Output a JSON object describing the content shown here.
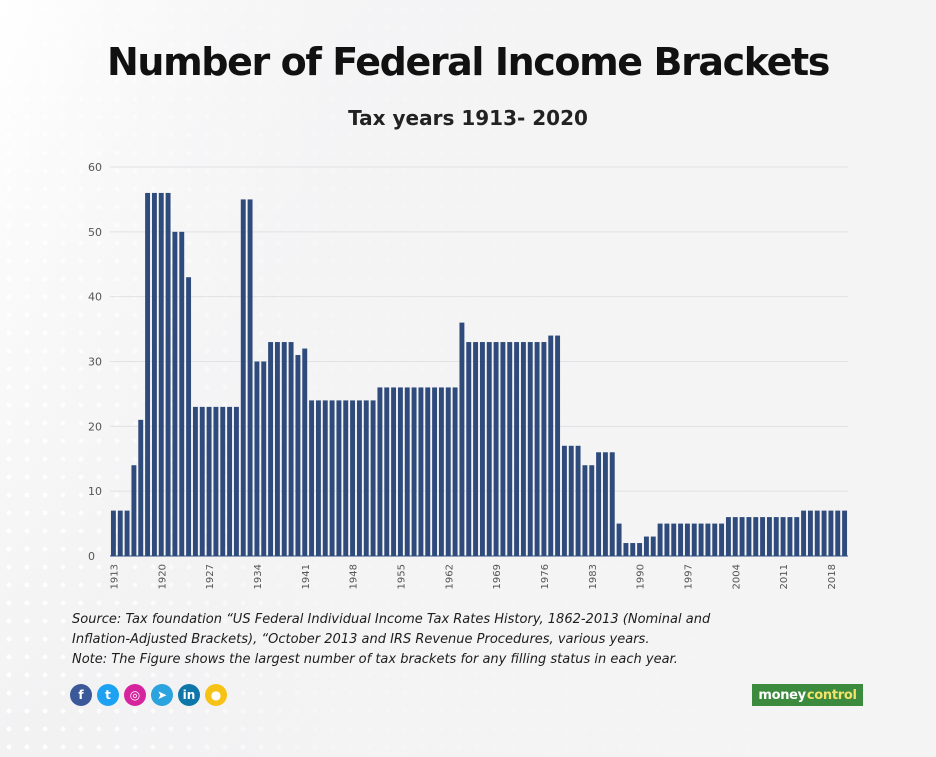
{
  "header": {
    "title": "Number of Federal Income Brackets",
    "subtitle": "Tax years 1913- 2020"
  },
  "colors": {
    "bar": "#2f4b7c",
    "grid": "#e2e2e4",
    "tick": "#555555"
  },
  "chart_data": {
    "type": "bar",
    "title": "Number of Federal Income Brackets",
    "subtitle": "Tax years 1913- 2020",
    "xlabel": "",
    "ylabel": "",
    "ylim": [
      0,
      60
    ],
    "yticks": [
      0,
      10,
      20,
      30,
      40,
      50,
      60
    ],
    "grid": true,
    "x_tick_labels": [
      "1913",
      "1920",
      "1927",
      "1934",
      "1941",
      "1948",
      "1955",
      "1962",
      "1969",
      "1976",
      "1983",
      "1990",
      "1997",
      "2004",
      "2011",
      "2018"
    ],
    "categories": [
      1913,
      1914,
      1915,
      1916,
      1917,
      1918,
      1919,
      1920,
      1921,
      1922,
      1923,
      1924,
      1925,
      1926,
      1927,
      1928,
      1929,
      1930,
      1931,
      1932,
      1933,
      1934,
      1935,
      1936,
      1937,
      1938,
      1939,
      1940,
      1941,
      1942,
      1943,
      1944,
      1945,
      1946,
      1947,
      1948,
      1949,
      1950,
      1951,
      1952,
      1953,
      1954,
      1955,
      1956,
      1957,
      1958,
      1959,
      1960,
      1961,
      1962,
      1963,
      1964,
      1965,
      1966,
      1967,
      1968,
      1969,
      1970,
      1971,
      1972,
      1973,
      1974,
      1975,
      1976,
      1977,
      1978,
      1979,
      1980,
      1981,
      1982,
      1983,
      1984,
      1985,
      1986,
      1987,
      1988,
      1989,
      1990,
      1991,
      1992,
      1993,
      1994,
      1995,
      1996,
      1997,
      1998,
      1999,
      2000,
      2001,
      2002,
      2003,
      2004,
      2005,
      2006,
      2007,
      2008,
      2009,
      2010,
      2011,
      2012,
      2013,
      2014,
      2015,
      2016,
      2017,
      2018,
      2019,
      2020
    ],
    "values": [
      7,
      7,
      7,
      14,
      21,
      56,
      56,
      56,
      56,
      50,
      50,
      43,
      23,
      23,
      23,
      23,
      23,
      23,
      23,
      55,
      55,
      30,
      30,
      33,
      33,
      33,
      33,
      31,
      32,
      24,
      24,
      24,
      24,
      24,
      24,
      24,
      24,
      24,
      24,
      26,
      26,
      26,
      26,
      26,
      26,
      26,
      26,
      26,
      26,
      26,
      26,
      36,
      33,
      33,
      33,
      33,
      33,
      33,
      33,
      33,
      33,
      33,
      33,
      33,
      34,
      34,
      17,
      17,
      17,
      14,
      14,
      16,
      16,
      16,
      5,
      2,
      2,
      2,
      3,
      3,
      5,
      5,
      5,
      5,
      5,
      5,
      5,
      5,
      5,
      5,
      6,
      6,
      6,
      6,
      6,
      6,
      6,
      6,
      6,
      6,
      6,
      7,
      7,
      7,
      7,
      7,
      7,
      7
    ]
  },
  "notes": {
    "line1": "Source: Tax foundation “US Federal Individual Income Tax Rates History, 1862-2013 (Nominal and",
    "line2": "Inflation-Adjusted Brackets), “October 2013 and IRS Revenue Procedures, various years.",
    "line3": "Note: The Figure shows the largest number of tax brackets for any filling status in each year."
  },
  "social": [
    {
      "name": "facebook-icon",
      "glyph": "f",
      "color": "#3b5998"
    },
    {
      "name": "twitter-icon",
      "glyph": "t",
      "color": "#1da1f2"
    },
    {
      "name": "instagram-icon",
      "glyph": "◎",
      "color": "#d6249f"
    },
    {
      "name": "telegram-icon",
      "glyph": "➤",
      "color": "#2aa3df"
    },
    {
      "name": "linkedin-icon",
      "glyph": "in",
      "color": "#0e76a8"
    },
    {
      "name": "koo-icon",
      "glyph": "●",
      "color": "#f6c215"
    }
  ],
  "logo": {
    "part1": "money",
    "part2": "control"
  }
}
